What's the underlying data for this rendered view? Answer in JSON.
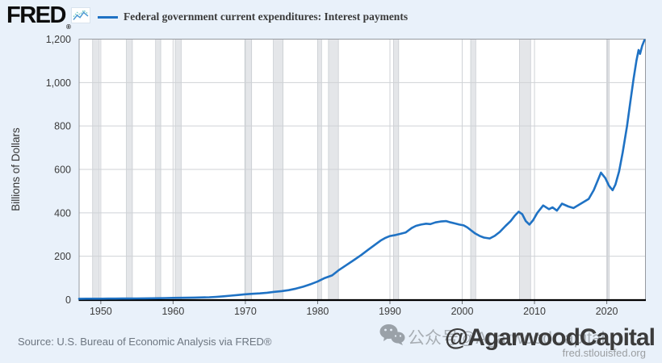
{
  "header": {
    "logo_text": "FRED",
    "logo_reg": "®",
    "legend_label": "Federal government current expenditures: Interest payments"
  },
  "footer": {
    "source_text": "Source: U.S. Bureau of Economic Analysis via FRED®",
    "watermark_gray": "公众号@AgarwoodCapital",
    "watermark_dark": "@AgarwoodCapital",
    "site_url": "fred.stlouisfed.org"
  },
  "colors": {
    "page_background": "#e9f1fa",
    "plot_background": "#ffffff",
    "line": "#1f72c4",
    "gridline": "#cfd2d6",
    "plot_border": "#969aa0",
    "axis_line": "#000000",
    "recession_band": "#e4e6e9",
    "recession_band_edge": "#c3c7cc",
    "tick_label": "#3c3c3c",
    "logo_teal": "#74ccc3",
    "logo_blue": "#4a97d2",
    "watermark_gray": "#a8aeb4",
    "watermark_dark": "#3b3b3b"
  },
  "chart_data": {
    "type": "line",
    "title": "Federal government current expenditures: Interest payments",
    "xlabel": "",
    "ylabel": "Billions of Dollars",
    "xlim": [
      1947,
      2025.35
    ],
    "ylim": [
      0,
      1200
    ],
    "x_ticks": [
      1950,
      1960,
      1970,
      1980,
      1990,
      2000,
      2010,
      2020
    ],
    "x_tick_labels": [
      "1950",
      "1960",
      "1970",
      "1980",
      "1990",
      "2000",
      "2010",
      "2020"
    ],
    "y_ticks": [
      0,
      200,
      400,
      600,
      800,
      1000,
      1200
    ],
    "y_tick_labels": [
      "0",
      "200",
      "400",
      "600",
      "800",
      "1,000",
      "1,200"
    ],
    "grid": true,
    "legend_position": "top",
    "recession_bands": [
      [
        1948.87,
        1949.79
      ],
      [
        1953.54,
        1954.37
      ],
      [
        1957.58,
        1958.29
      ],
      [
        1960.29,
        1961.12
      ],
      [
        1969.92,
        1970.87
      ],
      [
        1973.87,
        1975.21
      ],
      [
        1980.0,
        1980.54
      ],
      [
        1981.5,
        1982.87
      ],
      [
        1990.5,
        1991.21
      ],
      [
        2001.17,
        2001.87
      ],
      [
        2007.92,
        2009.46
      ],
      [
        2020.08,
        2020.33
      ]
    ],
    "series": [
      {
        "name": "Federal government current expenditures: Interest payments",
        "units": "Billions of Dollars",
        "points": [
          [
            1947,
            4.2
          ],
          [
            1948,
            4.3
          ],
          [
            1949,
            4.4
          ],
          [
            1950,
            4.5
          ],
          [
            1951,
            4.7
          ],
          [
            1952,
            4.9
          ],
          [
            1953,
            5.1
          ],
          [
            1954,
            5.3
          ],
          [
            1955,
            5.6
          ],
          [
            1956,
            5.9
          ],
          [
            1957,
            6.3
          ],
          [
            1958,
            6.7
          ],
          [
            1959,
            7.3
          ],
          [
            1960,
            8.0
          ],
          [
            1961,
            8.5
          ],
          [
            1962,
            9.1
          ],
          [
            1963,
            9.7
          ],
          [
            1964,
            10.4
          ],
          [
            1965,
            11.2
          ],
          [
            1966,
            13
          ],
          [
            1967,
            15.5
          ],
          [
            1968,
            18.5
          ],
          [
            1969,
            21.5
          ],
          [
            1970,
            25
          ],
          [
            1971,
            27
          ],
          [
            1972,
            29
          ],
          [
            1973,
            32
          ],
          [
            1974,
            36
          ],
          [
            1975,
            39.5
          ],
          [
            1976,
            44
          ],
          [
            1977,
            51
          ],
          [
            1978,
            60
          ],
          [
            1979,
            71
          ],
          [
            1980,
            84
          ],
          [
            1981,
            100
          ],
          [
            1982,
            112
          ],
          [
            1983,
            138
          ],
          [
            1984,
            160
          ],
          [
            1985,
            182
          ],
          [
            1986,
            205
          ],
          [
            1987,
            230
          ],
          [
            1988,
            255
          ],
          [
            1988.7,
            272
          ],
          [
            1989.4,
            285
          ],
          [
            1990,
            293
          ],
          [
            1990.8,
            298
          ],
          [
            1991.5,
            304
          ],
          [
            1992.2,
            310
          ],
          [
            1993,
            330
          ],
          [
            1993.6,
            340
          ],
          [
            1994.3,
            346
          ],
          [
            1995,
            350
          ],
          [
            1995.6,
            348
          ],
          [
            1996.3,
            356
          ],
          [
            1997,
            360
          ],
          [
            1997.8,
            362
          ],
          [
            1998.4,
            356
          ],
          [
            1999,
            351
          ],
          [
            1999.6,
            346
          ],
          [
            2000.2,
            342
          ],
          [
            2000.7,
            333
          ],
          [
            2001.2,
            320
          ],
          [
            2001.8,
            305
          ],
          [
            2002.4,
            294
          ],
          [
            2003,
            286
          ],
          [
            2003.8,
            282
          ],
          [
            2004.5,
            294
          ],
          [
            2005.2,
            312
          ],
          [
            2006,
            340
          ],
          [
            2006.7,
            362
          ],
          [
            2007.3,
            388
          ],
          [
            2007.8,
            405
          ],
          [
            2008.3,
            394
          ],
          [
            2008.8,
            362
          ],
          [
            2009.3,
            346
          ],
          [
            2009.8,
            366
          ],
          [
            2010.4,
            400
          ],
          [
            2011.2,
            434
          ],
          [
            2012,
            417
          ],
          [
            2012.5,
            425
          ],
          [
            2013.1,
            410
          ],
          [
            2013.8,
            442
          ],
          [
            2014.7,
            429
          ],
          [
            2015.4,
            422
          ],
          [
            2016.4,
            442
          ],
          [
            2017.5,
            464
          ],
          [
            2018.2,
            505
          ],
          [
            2018.7,
            545
          ],
          [
            2019.2,
            585
          ],
          [
            2019.8,
            560
          ],
          [
            2020.3,
            525
          ],
          [
            2020.8,
            504
          ],
          [
            2021.2,
            530
          ],
          [
            2021.7,
            590
          ],
          [
            2022.2,
            678
          ],
          [
            2022.8,
            800
          ],
          [
            2023.3,
            920
          ],
          [
            2023.7,
            1015
          ],
          [
            2024.1,
            1100
          ],
          [
            2024.4,
            1150
          ],
          [
            2024.6,
            1132
          ],
          [
            2024.9,
            1170
          ],
          [
            2025.2,
            1195
          ]
        ]
      }
    ]
  }
}
